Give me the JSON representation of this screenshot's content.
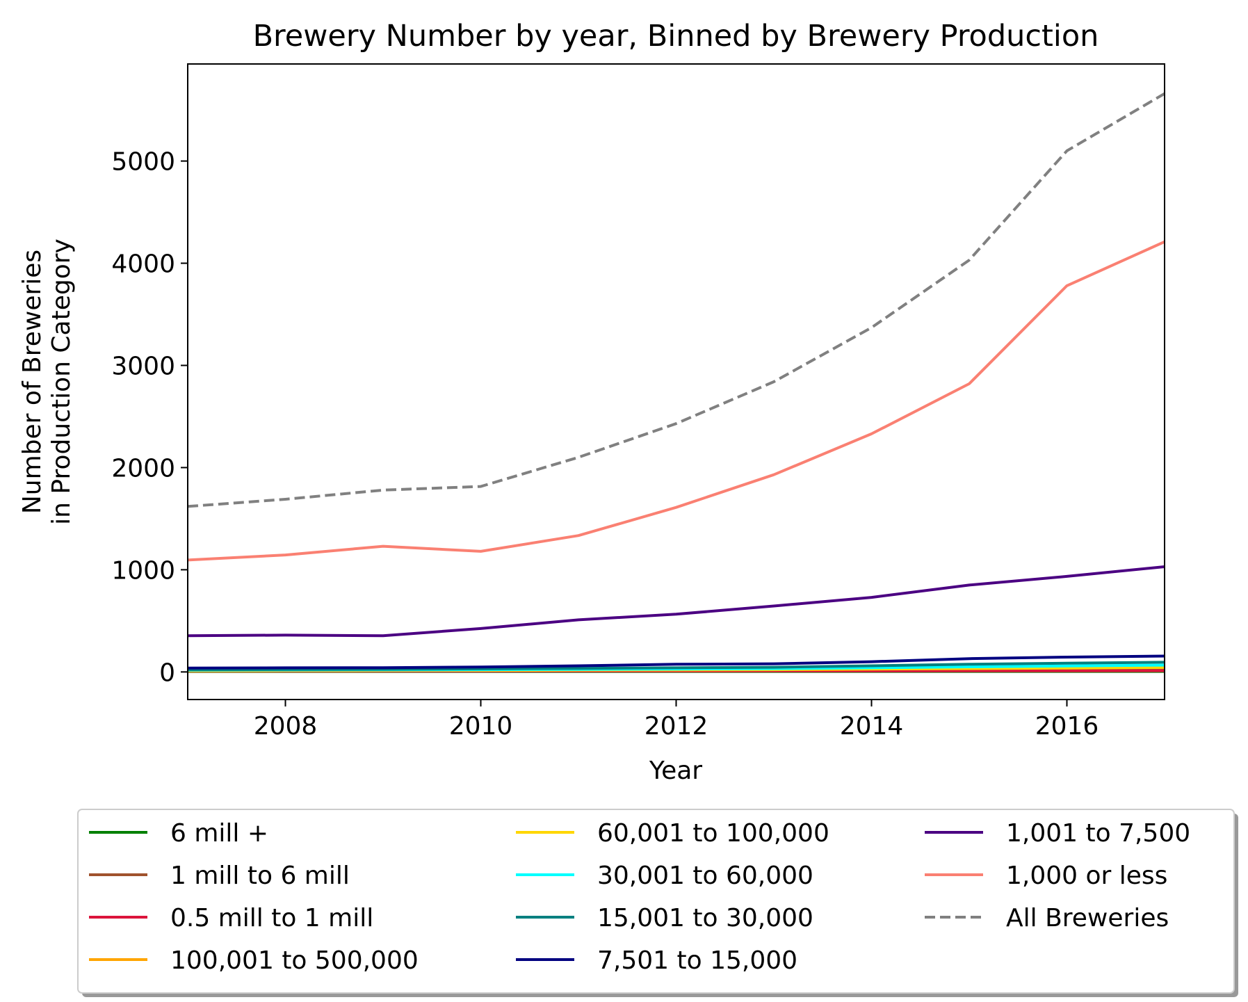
{
  "chart_data": {
    "type": "line",
    "title": "Brewery Number by year, Binned by Brewery Production",
    "xlabel": "Year",
    "ylabel_lines": [
      "Number of Breweries",
      "in Production Category"
    ],
    "xlim": [
      2007,
      2017
    ],
    "ylim": [
      -270,
      5950
    ],
    "xticks": [
      2008,
      2010,
      2012,
      2014,
      2016
    ],
    "yticks": [
      0,
      1000,
      2000,
      3000,
      4000,
      5000
    ],
    "x": [
      2007,
      2008,
      2009,
      2010,
      2011,
      2012,
      2013,
      2014,
      2015,
      2016,
      2017
    ],
    "legend_position": "below plot, 3 columns",
    "series": [
      {
        "name": "6 mill +",
        "color": "#008000",
        "dashed": false,
        "values": [
          5,
          5,
          5,
          5,
          5,
          5,
          5,
          5,
          5,
          5,
          5
        ]
      },
      {
        "name": "1 mill to 6 mill",
        "color": "#a0522d",
        "dashed": false,
        "values": [
          14,
          14,
          15,
          15,
          16,
          18,
          19,
          20,
          20,
          21,
          22
        ]
      },
      {
        "name": "0.5 mill to 1 mill",
        "color": "#dc143c",
        "dashed": false,
        "values": [
          8,
          8,
          8,
          8,
          9,
          9,
          10,
          10,
          11,
          11,
          12
        ]
      },
      {
        "name": "100,001 to 500,000",
        "color": "#ffa500",
        "dashed": false,
        "values": [
          20,
          22,
          23,
          25,
          26,
          27,
          30,
          35,
          40,
          42,
          45
        ]
      },
      {
        "name": "60,001 to 100,000",
        "color": "#ffd700",
        "dashed": false,
        "values": [
          12,
          13,
          14,
          15,
          17,
          19,
          22,
          28,
          33,
          38,
          44
        ]
      },
      {
        "name": "30,001 to 60,000",
        "color": "#00ffff",
        "dashed": false,
        "values": [
          18,
          19,
          20,
          22,
          25,
          28,
          32,
          40,
          50,
          58,
          66
        ]
      },
      {
        "name": "15,001 to 30,000",
        "color": "#008080",
        "dashed": false,
        "values": [
          22,
          24,
          26,
          30,
          35,
          40,
          46,
          60,
          75,
          85,
          95
        ]
      },
      {
        "name": "7,501 to 15,000",
        "color": "#000080",
        "dashed": false,
        "values": [
          38,
          40,
          42,
          48,
          60,
          75,
          80,
          100,
          130,
          145,
          155
        ]
      },
      {
        "name": "1,001 to 7,500",
        "color": "#4b0082",
        "dashed": false,
        "values": [
          355,
          360,
          355,
          425,
          510,
          565,
          645,
          730,
          850,
          935,
          1030
        ]
      },
      {
        "name": "1,000 or less",
        "color": "#fa8072",
        "dashed": false,
        "values": [
          1095,
          1145,
          1230,
          1180,
          1335,
          1610,
          1930,
          2330,
          2820,
          3780,
          4210
        ]
      },
      {
        "name": "All Breweries",
        "color": "#808080",
        "dashed": true,
        "values": [
          1620,
          1690,
          1780,
          1815,
          2100,
          2430,
          2840,
          3370,
          4030,
          5100,
          5660
        ]
      }
    ]
  }
}
